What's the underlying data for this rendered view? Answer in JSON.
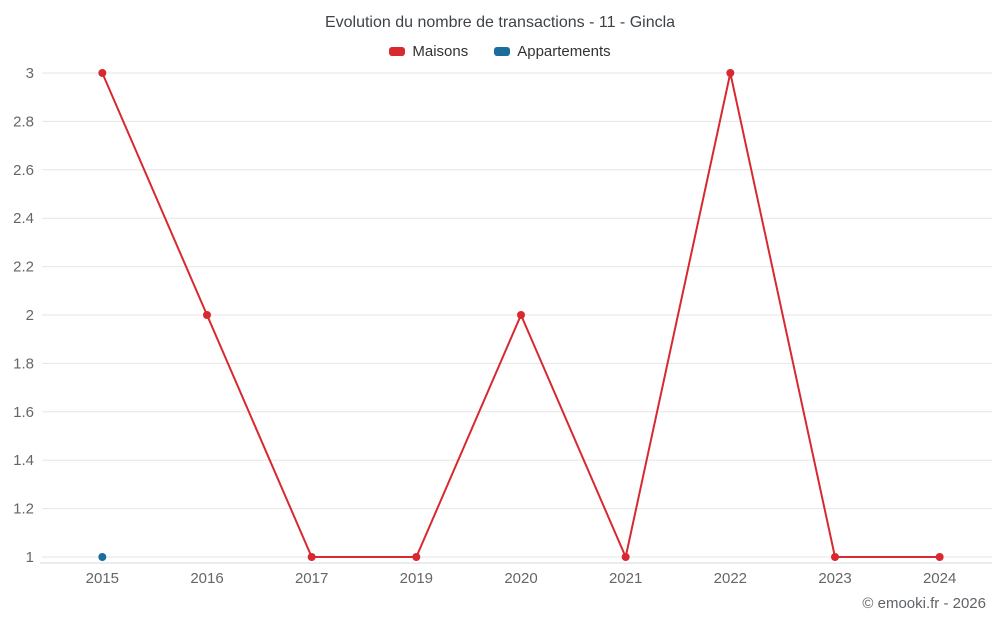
{
  "title": "Evolution du nombre de transactions - 11 - Gincla",
  "footer": "© emooki.fr - 2026",
  "legend": [
    {
      "label": "Maisons",
      "color": "#d7292f"
    },
    {
      "label": "Appartements",
      "color": "#1b6d9c"
    }
  ],
  "colors": {
    "grid": "#e6e6e6",
    "axis_line": "#d3d9e0",
    "axis_label": "#666666"
  },
  "chart_data": {
    "type": "line",
    "title": "Evolution du nombre de transactions - 11 - Gincla",
    "categories": [
      "2015",
      "2016",
      "2017",
      "2019",
      "2020",
      "2021",
      "2022",
      "2023",
      "2024"
    ],
    "series": [
      {
        "name": "Maisons",
        "color": "#d7292f",
        "values": [
          3,
          2,
          1,
          1,
          2,
          1,
          3,
          1,
          1
        ]
      },
      {
        "name": "Appartements",
        "color": "#1b6d9c",
        "values": [
          1,
          null,
          null,
          null,
          null,
          null,
          null,
          null,
          null
        ]
      }
    ],
    "xlabel": "",
    "ylabel": "",
    "ylim": [
      1,
      3
    ],
    "yticks": [
      1,
      1.2,
      1.4,
      1.6,
      1.8,
      2,
      2.2,
      2.4,
      2.6,
      2.8,
      3
    ],
    "grid": true,
    "legend_position": "top"
  }
}
